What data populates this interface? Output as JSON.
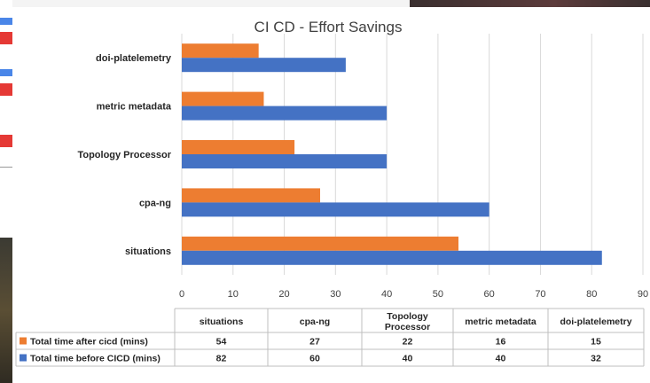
{
  "chart_data": {
    "type": "bar",
    "orientation": "horizontal",
    "title": "CI CD - Effort Savings",
    "categories": [
      "situations",
      "cpa-ng",
      "Topology Processor",
      "metric metadata",
      "doi-platelemetry"
    ],
    "series": [
      {
        "name": "Total time after cicd (mins)",
        "color": "#ED7D31",
        "values": [
          54,
          27,
          22,
          16,
          15
        ]
      },
      {
        "name": "Total time before CICD (mins)",
        "color": "#4472C4",
        "values": [
          82,
          60,
          40,
          40,
          32
        ]
      }
    ],
    "xlim": [
      0,
      90
    ],
    "xticks": [
      0,
      10,
      20,
      30,
      40,
      50,
      60,
      70,
      80,
      90
    ],
    "grid": true,
    "legend": "data table below chart",
    "table_headers": [
      "situations",
      "cpa-ng",
      "Topology Processor",
      "metric metadata",
      "doi-platelemetry"
    ]
  }
}
